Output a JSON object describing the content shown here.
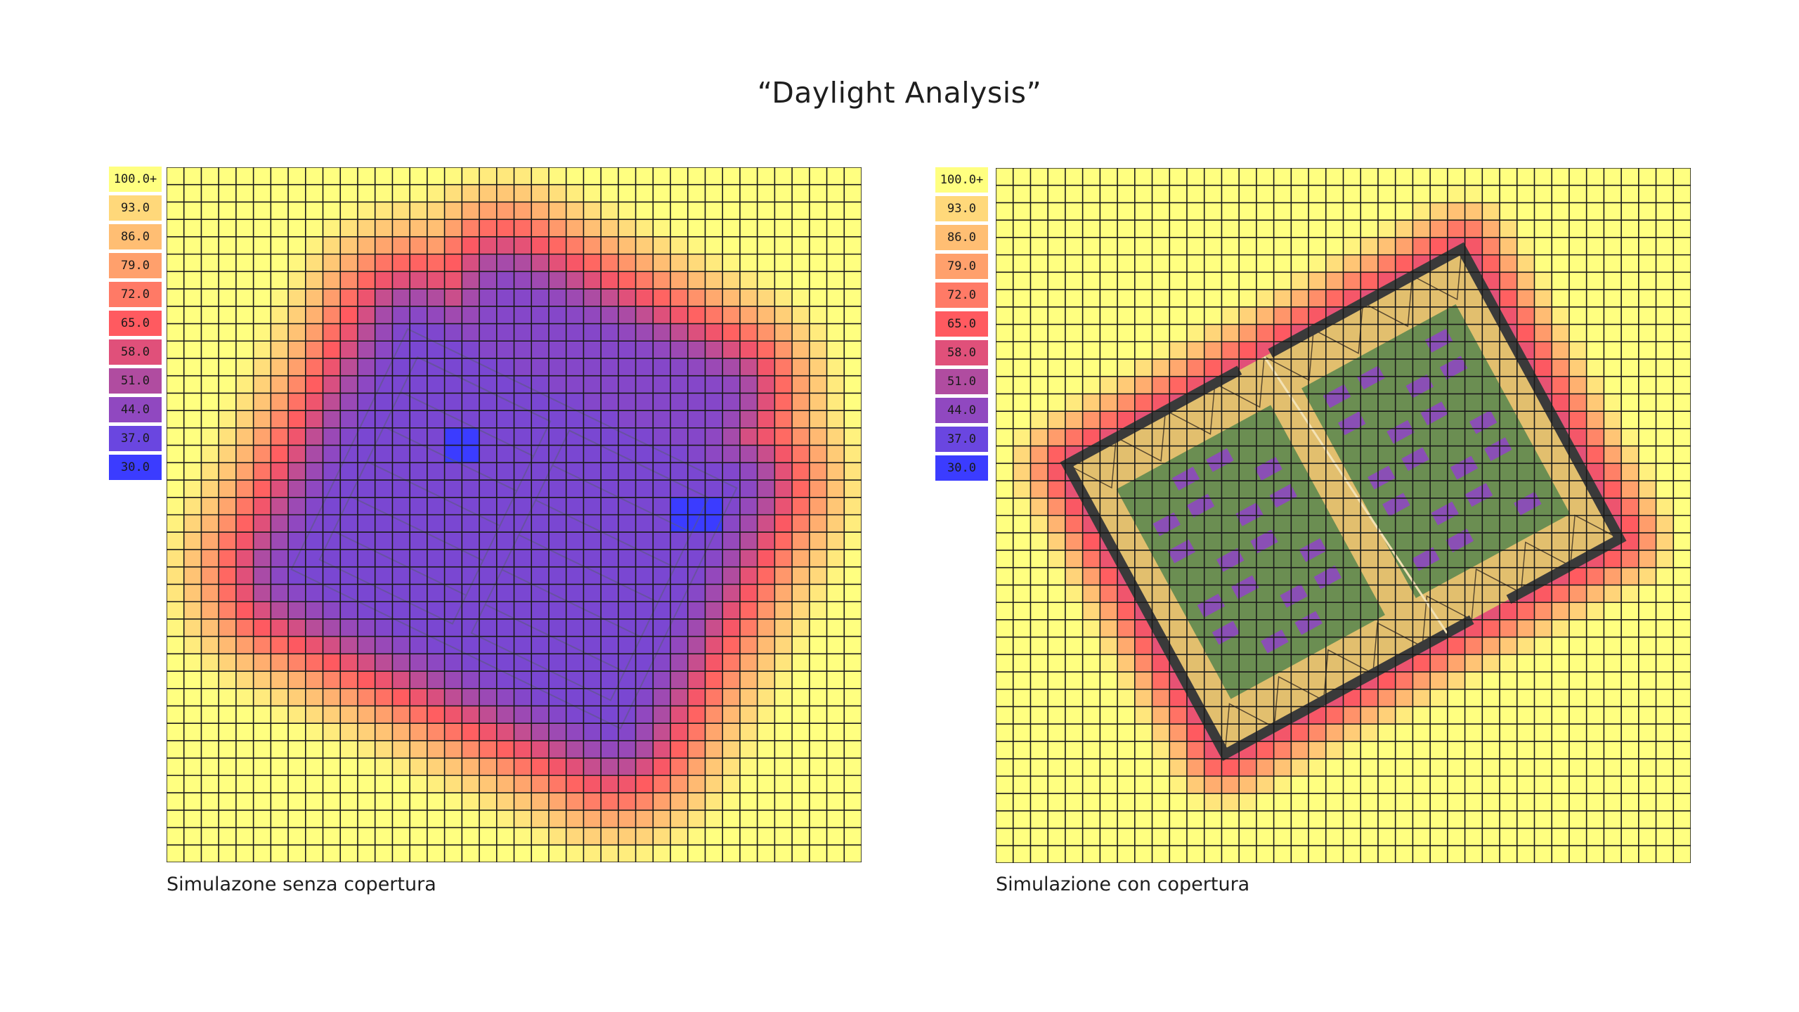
{
  "title": "“Daylight Analysis”",
  "legend_colors": [
    "#ffff80",
    "#ffd87a",
    "#ffbe73",
    "#ffa06c",
    "#ff7a66",
    "#ff5a60",
    "#e0507a",
    "#b04ca0",
    "#9048c0",
    "#6a46e0",
    "#3b3cff"
  ],
  "colors": {
    "grid_line": "#1a1a1a",
    "roof_frame": "#3a3a3a",
    "roof_band": "#e2bf6e",
    "roof_panel": "#6b8e52",
    "opening": "#8a4fb5"
  },
  "chart_data": [
    {
      "type": "heatmap",
      "title": "",
      "caption": "Simulazone senza copertura",
      "scale_labels": [
        "100.0+",
        "93.0",
        "86.0",
        "79.0",
        "72.0",
        "65.0",
        "58.0",
        "51.0",
        "44.0",
        "37.0",
        "30.0"
      ],
      "scale_range": [
        30.0,
        100.0
      ],
      "grid": true,
      "grid_size": [
        40,
        40
      ],
      "lowest_values": [
        30.0,
        30.0
      ]
    },
    {
      "type": "heatmap",
      "title": "",
      "caption": "Simulazione con copertura",
      "scale_labels": [
        "100.0+",
        "93.0",
        "86.0",
        "79.0",
        "72.0",
        "65.0",
        "58.0",
        "51.0",
        "44.0",
        "37.0",
        "30.0"
      ],
      "scale_range": [
        30.0,
        100.0
      ],
      "grid": true,
      "grid_size": [
        40,
        40
      ]
    }
  ]
}
